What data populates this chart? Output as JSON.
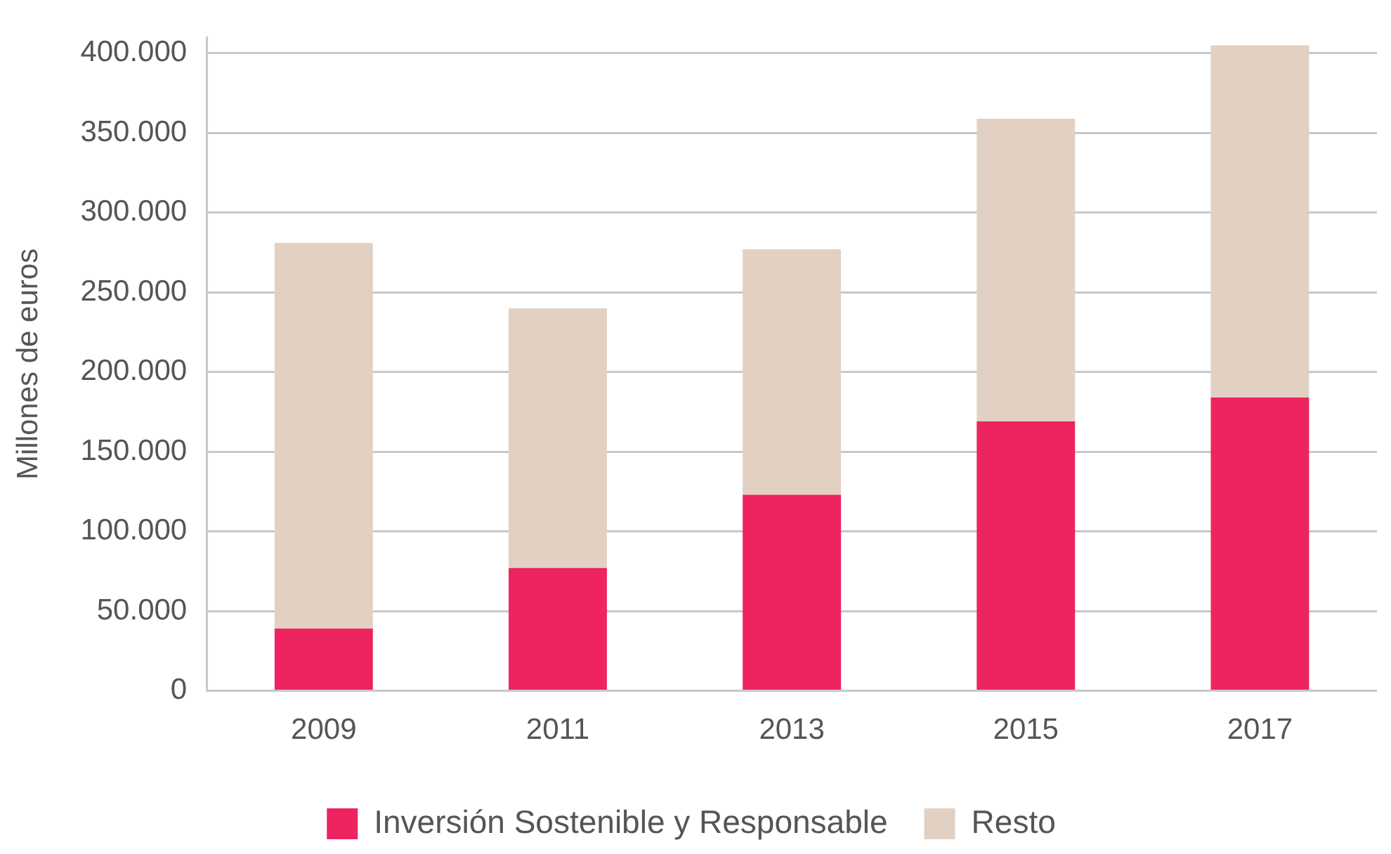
{
  "chart_data": {
    "type": "bar",
    "stacked": true,
    "ylabel": "Millones de euros",
    "categories": [
      "2009",
      "2011",
      "2013",
      "2015",
      "2017"
    ],
    "series": [
      {
        "name": "Inversión Sostenible y Responsable",
        "color": "#ee2461",
        "values": [
          39000,
          77000,
          123000,
          169000,
          184000
        ]
      },
      {
        "name": "Resto",
        "color": "#e2d1c3",
        "values": [
          242000,
          163000,
          154000,
          190000,
          221000
        ]
      }
    ],
    "ylim": [
      0,
      410000
    ],
    "yticks": [
      {
        "value": 0,
        "label": "0"
      },
      {
        "value": 50000,
        "label": "50.000"
      },
      {
        "value": 100000,
        "label": "100.000"
      },
      {
        "value": 150000,
        "label": "150.000"
      },
      {
        "value": 200000,
        "label": "200.000"
      },
      {
        "value": 250000,
        "label": "250.000"
      },
      {
        "value": 300000,
        "label": "300.000"
      },
      {
        "value": 350000,
        "label": "350.000"
      },
      {
        "value": 400000,
        "label": "400.000"
      }
    ],
    "grid": "y",
    "legend": "bottom"
  }
}
